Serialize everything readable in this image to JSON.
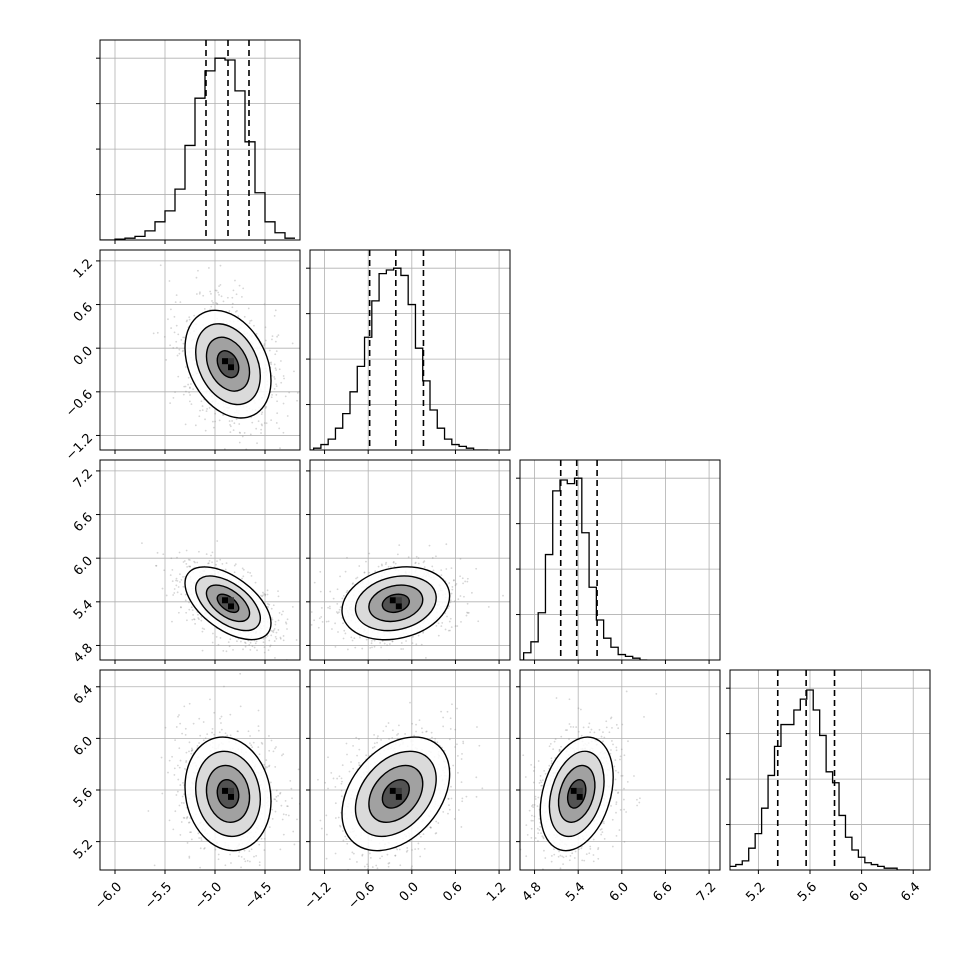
{
  "chart_data": {
    "type": "corner",
    "grid": true,
    "params": [
      {
        "range": [
          -6.15,
          -4.15
        ],
        "ticks": [
          -6.0,
          -5.5,
          -5.0,
          -4.5
        ],
        "tick_labels": [
          "−6.0",
          "−5.5",
          "−5.0",
          "−4.5"
        ],
        "quantiles": [
          -5.09,
          -4.87,
          -4.66
        ],
        "hist": {
          "x": [
            -6.15,
            -6.05,
            -5.95,
            -5.85,
            -5.75,
            -5.65,
            -5.55,
            -5.45,
            -5.35,
            -5.25,
            -5.15,
            -5.05,
            -4.95,
            -4.85,
            -4.75,
            -4.65,
            -4.55,
            -4.45,
            -4.35,
            -4.25
          ],
          "density": [
            0.0,
            0.0,
            0.005,
            0.01,
            0.02,
            0.05,
            0.1,
            0.16,
            0.28,
            0.52,
            0.78,
            0.93,
            1.0,
            0.99,
            0.82,
            0.54,
            0.26,
            0.1,
            0.04,
            0.01
          ]
        }
      },
      {
        "range": [
          -1.4,
          1.35
        ],
        "ticks": [
          -1.2,
          -0.6,
          0.0,
          0.6,
          1.2
        ],
        "tick_labels": [
          "−1.2",
          "−0.6",
          "0.0",
          "0.6",
          "1.2"
        ],
        "quantiles": [
          -0.58,
          -0.22,
          0.16
        ],
        "hist": {
          "x": [
            -1.4,
            -1.3,
            -1.2,
            -1.1,
            -1.0,
            -0.9,
            -0.8,
            -0.7,
            -0.6,
            -0.5,
            -0.4,
            -0.3,
            -0.2,
            -0.1,
            0.0,
            0.1,
            0.2,
            0.3,
            0.4,
            0.5,
            0.6,
            0.7,
            0.8,
            0.9,
            1.0
          ],
          "density": [
            0.0,
            0.01,
            0.03,
            0.06,
            0.12,
            0.2,
            0.32,
            0.46,
            0.62,
            0.82,
            0.97,
            0.99,
            1.0,
            0.96,
            0.8,
            0.56,
            0.38,
            0.22,
            0.12,
            0.06,
            0.03,
            0.02,
            0.01,
            0.0,
            0.0
          ]
        }
      },
      {
        "range": [
          4.6,
          7.35
        ],
        "ticks": [
          4.8,
          5.4,
          6.0,
          6.6,
          7.2
        ],
        "tick_labels": [
          "4.8",
          "5.4",
          "6.0",
          "6.6",
          "7.2"
        ],
        "quantiles": [
          5.16,
          5.38,
          5.66
        ],
        "hist": {
          "x": [
            4.6,
            4.7,
            4.8,
            4.9,
            5.0,
            5.1,
            5.2,
            5.3,
            5.4,
            5.5,
            5.6,
            5.7,
            5.8,
            5.9,
            6.0,
            6.1,
            6.2,
            6.3
          ],
          "density": [
            0.0,
            0.04,
            0.1,
            0.26,
            0.58,
            0.93,
            0.99,
            0.97,
            1.0,
            0.7,
            0.4,
            0.22,
            0.12,
            0.07,
            0.03,
            0.02,
            0.01,
            0.0
          ]
        }
      },
      {
        "range": [
          4.98,
          6.53
        ],
        "ticks": [
          5.2,
          5.6,
          6.0,
          6.4
        ],
        "tick_labels": [
          "5.2",
          "5.6",
          "6.0",
          "6.4"
        ],
        "quantiles": [
          5.35,
          5.57,
          5.79
        ],
        "hist": {
          "x": [
            5.0,
            5.05,
            5.1,
            5.15,
            5.2,
            5.25,
            5.3,
            5.35,
            5.4,
            5.45,
            5.5,
            5.55,
            5.6,
            5.65,
            5.7,
            5.75,
            5.8,
            5.85,
            5.9,
            5.95,
            6.0,
            6.05,
            6.1,
            6.15,
            6.2,
            6.25,
            6.3,
            6.35
          ],
          "density": [
            0.02,
            0.03,
            0.05,
            0.12,
            0.2,
            0.34,
            0.52,
            0.68,
            0.8,
            0.8,
            0.88,
            0.94,
            0.99,
            0.88,
            0.74,
            0.54,
            0.48,
            0.3,
            0.18,
            0.11,
            0.07,
            0.04,
            0.03,
            0.02,
            0.01,
            0.01,
            0.0,
            0.0
          ]
        }
      }
    ],
    "correlation": [
      [
        1.0,
        -0.3,
        -0.55,
        -0.12
      ],
      [
        -0.3,
        1.0,
        0.2,
        0.35
      ],
      [
        -0.55,
        0.2,
        1.0,
        0.3
      ],
      [
        -0.12,
        0.35,
        0.3,
        1.0
      ]
    ],
    "contour_levels_sigma": [
      0.5,
      1.0,
      1.5,
      2.0
    ]
  }
}
